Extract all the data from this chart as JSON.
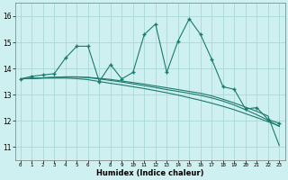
{
  "title": "",
  "xlabel": "Humidex (Indice chaleur)",
  "xlim": [
    -0.5,
    23.5
  ],
  "ylim": [
    10.5,
    16.5
  ],
  "yticks": [
    11,
    12,
    13,
    14,
    15,
    16
  ],
  "xticks": [
    0,
    1,
    2,
    3,
    4,
    5,
    6,
    7,
    8,
    9,
    10,
    11,
    12,
    13,
    14,
    15,
    16,
    17,
    18,
    19,
    20,
    21,
    22,
    23
  ],
  "bg_color": "#cff0f0",
  "grid_color": "#aad8d8",
  "line_color": "#1a7a6e",
  "series1_x": [
    0,
    1,
    2,
    3,
    4,
    5,
    6,
    7,
    8,
    9,
    10,
    11,
    12,
    13,
    14,
    15,
    16,
    17,
    18,
    19,
    20,
    21,
    22,
    23
  ],
  "series1_y": [
    13.6,
    13.7,
    13.75,
    13.8,
    14.4,
    14.85,
    14.85,
    13.5,
    14.15,
    13.6,
    13.85,
    15.3,
    15.7,
    13.85,
    15.05,
    15.9,
    15.3,
    14.35,
    13.3,
    13.2,
    12.45,
    12.5,
    12.05,
    11.9
  ],
  "series2_x": [
    0,
    1,
    2,
    3,
    4,
    5,
    6,
    7,
    8,
    9,
    10,
    11,
    12,
    13,
    14,
    15,
    16,
    17,
    18,
    19,
    20,
    21,
    22,
    23
  ],
  "series2_y": [
    13.6,
    13.62,
    13.64,
    13.66,
    13.68,
    13.68,
    13.66,
    13.62,
    13.58,
    13.52,
    13.46,
    13.4,
    13.33,
    13.26,
    13.19,
    13.12,
    13.05,
    12.95,
    12.82,
    12.68,
    12.52,
    12.36,
    12.18,
    11.05
  ],
  "series3_x": [
    0,
    1,
    2,
    3,
    4,
    5,
    6,
    7,
    8,
    9,
    10,
    11,
    12,
    13,
    14,
    15,
    16,
    17,
    18,
    19,
    20,
    21,
    22,
    23
  ],
  "series3_y": [
    13.6,
    13.62,
    13.63,
    13.63,
    13.63,
    13.61,
    13.57,
    13.5,
    13.43,
    13.37,
    13.3,
    13.23,
    13.15,
    13.07,
    12.98,
    12.88,
    12.78,
    12.67,
    12.55,
    12.42,
    12.27,
    12.12,
    11.96,
    11.8
  ],
  "series4_x": [
    0,
    1,
    2,
    3,
    4,
    5,
    6,
    7,
    8,
    9,
    10,
    11,
    12,
    13,
    14,
    15,
    16,
    17,
    18,
    19,
    20,
    21,
    22,
    23
  ],
  "series4_y": [
    13.6,
    13.62,
    13.64,
    13.66,
    13.67,
    13.67,
    13.65,
    13.6,
    13.54,
    13.48,
    13.41,
    13.34,
    13.27,
    13.19,
    13.12,
    13.05,
    12.97,
    12.87,
    12.75,
    12.6,
    12.42,
    12.23,
    12.02,
    11.78
  ]
}
